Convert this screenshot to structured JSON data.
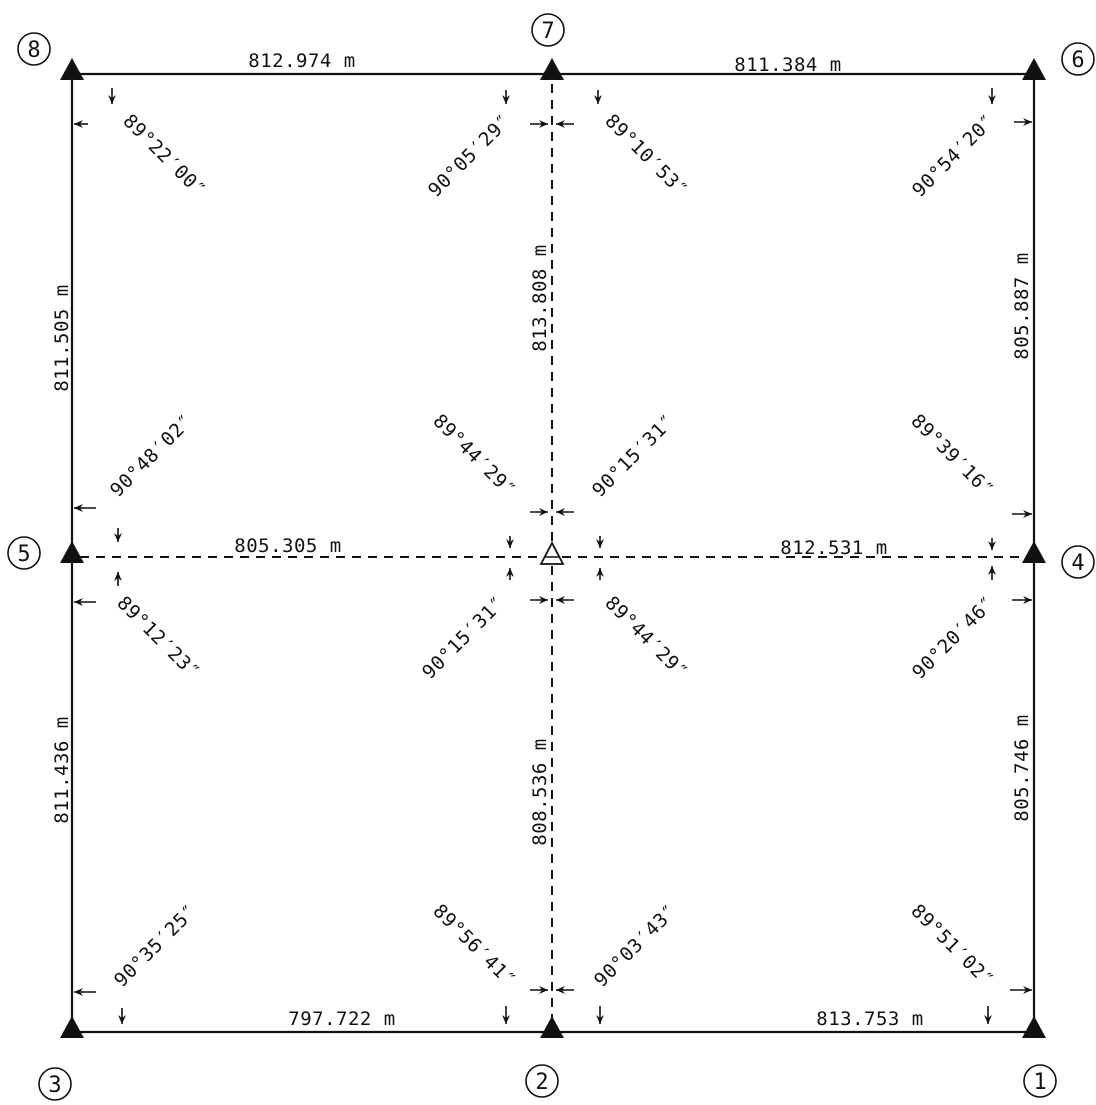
{
  "stations": [
    {
      "id": "1",
      "label": "1"
    },
    {
      "id": "2",
      "label": "2"
    },
    {
      "id": "3",
      "label": "3"
    },
    {
      "id": "4",
      "label": "4"
    },
    {
      "id": "5",
      "label": "5"
    },
    {
      "id": "6",
      "label": "6"
    },
    {
      "id": "7",
      "label": "7"
    },
    {
      "id": "8",
      "label": "8"
    }
  ],
  "distances": [
    {
      "from": "8",
      "to": "7",
      "text": "812.974 m"
    },
    {
      "from": "7",
      "to": "6",
      "text": "811.384 m"
    },
    {
      "from": "8",
      "to": "5",
      "text": "811.505 m"
    },
    {
      "from": "7",
      "to": "center",
      "text": "813.808 m"
    },
    {
      "from": "6",
      "to": "4",
      "text": "805.887 m"
    },
    {
      "from": "5",
      "to": "center",
      "text": "805.305 m"
    },
    {
      "from": "center",
      "to": "4",
      "text": "812.531 m"
    },
    {
      "from": "5",
      "to": "3",
      "text": "811.436 m"
    },
    {
      "from": "center",
      "to": "2",
      "text": "808.536 m"
    },
    {
      "from": "4",
      "to": "1",
      "text": "805.746 m"
    },
    {
      "from": "3",
      "to": "2",
      "text": "797.722 m"
    },
    {
      "from": "2",
      "to": "1",
      "text": "813.753 m"
    }
  ],
  "angles": [
    {
      "at": "8",
      "text": "89°22′00″"
    },
    {
      "at": "7-left",
      "text": "90°05′29″"
    },
    {
      "at": "7-right",
      "text": "89°10′53″"
    },
    {
      "at": "6",
      "text": "90°54′20″"
    },
    {
      "at": "5-top",
      "text": "90°48′02″"
    },
    {
      "at": "5-bottom",
      "text": "89°12′23″"
    },
    {
      "at": "center-top-left",
      "text": "89°44′29″"
    },
    {
      "at": "center-top-right",
      "text": "90°15′31″"
    },
    {
      "at": "center-bottom-left",
      "text": "90°15′31″"
    },
    {
      "at": "center-bottom-right",
      "text": "89°44′29″"
    },
    {
      "at": "4-top",
      "text": "89°39′16″"
    },
    {
      "at": "4-bottom",
      "text": "90°20′46″"
    },
    {
      "at": "3",
      "text": "90°35′25″"
    },
    {
      "at": "2-left",
      "text": "89°56′41″"
    },
    {
      "at": "2-right",
      "text": "90°03′43″"
    },
    {
      "at": "1",
      "text": "89°51′02″"
    }
  ]
}
